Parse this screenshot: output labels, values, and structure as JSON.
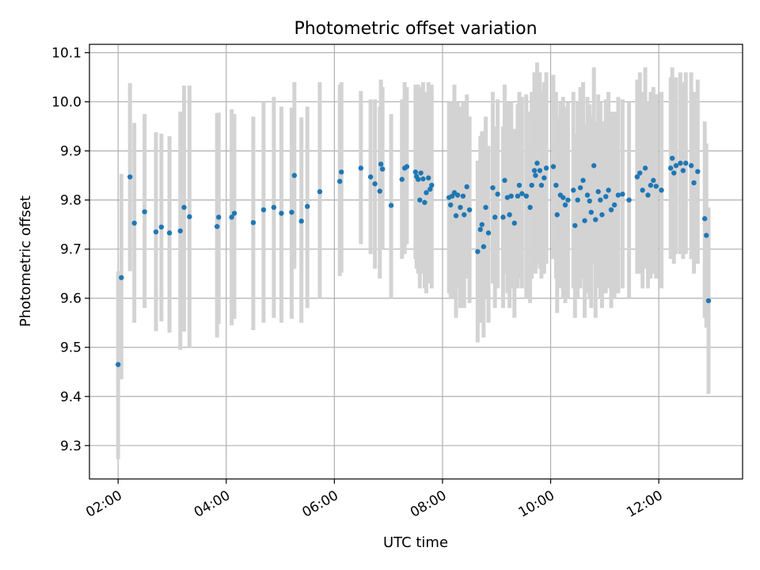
{
  "chart_data": {
    "type": "scatter",
    "title": "Photometric offset variation",
    "xlabel": "UTC time",
    "ylabel": "Photometric offset",
    "xlim": [
      1.47,
      13.55
    ],
    "ylim": [
      9.232,
      10.117
    ],
    "grid": true,
    "colors": {
      "marker": "#1f77b4",
      "errorbar": "#d3d3d3",
      "grid": "#b0b0b0"
    },
    "x_ticks": [
      {
        "value": 2,
        "label": "02:00"
      },
      {
        "value": 4,
        "label": "04:00"
      },
      {
        "value": 6,
        "label": "06:00"
      },
      {
        "value": 8,
        "label": "08:00"
      },
      {
        "value": 10,
        "label": "10:00"
      },
      {
        "value": 12,
        "label": "12:00"
      }
    ],
    "y_ticks": [
      {
        "value": 9.3,
        "label": "9.3"
      },
      {
        "value": 9.4,
        "label": "9.4"
      },
      {
        "value": 9.5,
        "label": "9.5"
      },
      {
        "value": 9.6,
        "label": "9.6"
      },
      {
        "value": 9.7,
        "label": "9.7"
      },
      {
        "value": 9.8,
        "label": "9.8"
      },
      {
        "value": 9.9,
        "label": "9.9"
      },
      {
        "value": 10.0,
        "label": "10.0"
      },
      {
        "value": 10.1,
        "label": "10.1"
      }
    ],
    "series": [
      {
        "name": "offset",
        "points": [
          [
            2.0,
            9.465,
            9.272,
            9.655
          ],
          [
            2.06,
            9.642,
            9.435,
            9.853
          ],
          [
            2.22,
            9.847,
            9.655,
            10.038
          ],
          [
            2.3,
            9.753,
            9.55,
            9.957
          ],
          [
            2.49,
            9.776,
            9.58,
            9.975
          ],
          [
            2.7,
            9.735,
            9.533,
            9.938
          ],
          [
            2.8,
            9.745,
            9.553,
            9.935
          ],
          [
            2.95,
            9.733,
            9.53,
            9.93
          ],
          [
            3.15,
            9.737,
            9.495,
            9.98
          ],
          [
            3.22,
            9.785,
            9.532,
            10.033
          ],
          [
            3.32,
            9.766,
            9.5,
            10.033
          ],
          [
            3.83,
            9.746,
            9.52,
            9.977
          ],
          [
            3.86,
            9.765,
            9.548,
            9.978
          ],
          [
            4.1,
            9.765,
            9.545,
            9.985
          ],
          [
            4.15,
            9.773,
            9.558,
            9.975
          ],
          [
            4.5,
            9.754,
            9.535,
            9.97
          ],
          [
            4.69,
            9.78,
            9.55,
            10.0
          ],
          [
            4.88,
            9.785,
            9.56,
            10.01
          ],
          [
            5.02,
            9.773,
            9.55,
            9.99
          ],
          [
            5.21,
            9.775,
            9.558,
            9.988
          ],
          [
            5.26,
            9.85,
            9.66,
            10.04
          ],
          [
            5.39,
            9.757,
            9.55,
            9.968
          ],
          [
            5.5,
            9.787,
            9.58,
            9.99
          ],
          [
            5.73,
            9.817,
            9.6,
            10.04
          ],
          [
            6.1,
            9.838,
            9.645,
            10.035
          ],
          [
            6.13,
            9.857,
            9.652,
            10.04
          ],
          [
            6.49,
            9.865,
            9.71,
            10.022
          ],
          [
            6.67,
            9.847,
            9.69,
            10.005
          ],
          [
            6.75,
            9.833,
            9.66,
            10.005
          ],
          [
            6.84,
            9.818,
            9.64,
            9.99
          ],
          [
            6.86,
            9.873,
            9.7,
            10.045
          ],
          [
            6.89,
            9.863,
            9.7,
            10.03
          ],
          [
            7.05,
            9.789,
            9.6,
            9.975
          ],
          [
            7.25,
            9.842,
            9.68,
            10.005
          ],
          [
            7.3,
            9.865,
            9.69,
            10.04
          ],
          [
            7.34,
            9.868,
            9.71,
            10.03
          ],
          [
            7.5,
            9.857,
            9.68,
            10.035
          ],
          [
            7.52,
            9.848,
            9.66,
            10.035
          ],
          [
            7.55,
            9.842,
            9.65,
            10.035
          ],
          [
            7.58,
            9.8,
            9.62,
            9.98
          ],
          [
            7.6,
            9.855,
            9.68,
            10.03
          ],
          [
            7.64,
            9.843,
            9.65,
            10.04
          ],
          [
            7.67,
            9.795,
            9.62,
            9.97
          ],
          [
            7.7,
            9.815,
            9.61,
            10.02
          ],
          [
            7.74,
            9.845,
            9.65,
            10.04
          ],
          [
            7.77,
            9.822,
            9.63,
            10.015
          ],
          [
            7.8,
            9.83,
            9.62,
            10.035
          ],
          [
            8.12,
            9.805,
            9.61,
            10.0
          ],
          [
            8.15,
            9.79,
            9.6,
            9.98
          ],
          [
            8.18,
            9.808,
            9.62,
            10.0
          ],
          [
            8.22,
            9.815,
            9.6,
            10.035
          ],
          [
            8.25,
            9.768,
            9.56,
            9.975
          ],
          [
            8.28,
            9.81,
            9.62,
            10.0
          ],
          [
            8.33,
            9.785,
            9.58,
            9.99
          ],
          [
            8.38,
            9.808,
            9.62,
            10.0
          ],
          [
            8.4,
            9.77,
            9.58,
            9.96
          ],
          [
            8.45,
            9.827,
            9.64,
            10.015
          ],
          [
            8.5,
            9.78,
            9.59,
            9.97
          ],
          [
            8.65,
            9.695,
            9.51,
            9.88
          ],
          [
            8.7,
            9.74,
            9.55,
            9.93
          ],
          [
            8.73,
            9.75,
            9.56,
            9.94
          ],
          [
            8.76,
            9.705,
            9.52,
            9.89
          ],
          [
            8.8,
            9.785,
            9.6,
            9.97
          ],
          [
            8.85,
            9.733,
            9.55,
            9.91
          ],
          [
            8.93,
            9.825,
            9.63,
            10.02
          ],
          [
            8.97,
            9.765,
            9.58,
            9.95
          ],
          [
            9.02,
            9.812,
            9.62,
            10.005
          ],
          [
            9.12,
            9.765,
            9.58,
            9.95
          ],
          [
            9.15,
            9.84,
            9.65,
            10.035
          ],
          [
            9.2,
            9.805,
            9.61,
            10.0
          ],
          [
            9.24,
            9.77,
            9.58,
            9.96
          ],
          [
            9.27,
            9.808,
            9.62,
            10.0
          ],
          [
            9.33,
            9.753,
            9.56,
            9.945
          ],
          [
            9.39,
            9.808,
            9.62,
            9.995
          ],
          [
            9.42,
            9.83,
            9.64,
            10.02
          ],
          [
            9.47,
            9.813,
            9.62,
            10.01
          ],
          [
            9.55,
            9.808,
            9.6,
            10.015
          ],
          [
            9.62,
            9.785,
            9.59,
            9.98
          ],
          [
            9.65,
            9.83,
            9.64,
            10.02
          ],
          [
            9.7,
            9.86,
            9.66,
            10.06
          ],
          [
            9.72,
            9.85,
            9.65,
            10.05
          ],
          [
            9.75,
            9.875,
            9.67,
            10.08
          ],
          [
            9.8,
            9.86,
            9.66,
            10.06
          ],
          [
            9.83,
            9.83,
            9.64,
            10.02
          ],
          [
            9.88,
            9.845,
            9.65,
            10.04
          ],
          [
            9.92,
            9.865,
            9.67,
            10.06
          ],
          [
            10.05,
            9.868,
            9.68,
            10.055
          ],
          [
            10.1,
            9.83,
            9.64,
            10.02
          ],
          [
            10.12,
            9.77,
            9.57,
            9.97
          ],
          [
            10.18,
            9.81,
            9.62,
            10.0
          ],
          [
            10.23,
            9.805,
            9.6,
            10.01
          ],
          [
            10.27,
            9.79,
            9.59,
            9.99
          ],
          [
            10.32,
            9.8,
            9.6,
            10.0
          ],
          [
            10.42,
            9.82,
            9.62,
            10.02
          ],
          [
            10.45,
            9.748,
            9.56,
            9.935
          ],
          [
            10.5,
            9.8,
            9.6,
            10.0
          ],
          [
            10.55,
            9.825,
            9.62,
            10.03
          ],
          [
            10.6,
            9.84,
            9.64,
            10.04
          ],
          [
            10.63,
            9.758,
            9.56,
            9.955
          ],
          [
            10.68,
            9.81,
            9.61,
            10.01
          ],
          [
            10.72,
            9.798,
            9.6,
            9.995
          ],
          [
            10.75,
            9.775,
            9.58,
            9.97
          ],
          [
            10.8,
            9.87,
            9.67,
            10.07
          ],
          [
            10.83,
            9.76,
            9.56,
            9.96
          ],
          [
            10.88,
            9.817,
            9.62,
            10.015
          ],
          [
            10.92,
            9.8,
            9.6,
            10.0
          ],
          [
            10.95,
            9.77,
            9.58,
            9.96
          ],
          [
            11.02,
            9.807,
            9.61,
            10.005
          ],
          [
            11.07,
            9.82,
            9.62,
            10.02
          ],
          [
            11.12,
            9.78,
            9.58,
            9.98
          ],
          [
            11.18,
            9.79,
            9.6,
            9.98
          ],
          [
            11.25,
            9.81,
            9.61,
            10.01
          ],
          [
            11.33,
            9.812,
            9.62,
            10.005
          ],
          [
            11.45,
            9.8,
            9.6,
            10.0
          ],
          [
            11.6,
            9.847,
            9.65,
            10.045
          ],
          [
            11.65,
            9.855,
            9.65,
            10.06
          ],
          [
            11.7,
            9.82,
            9.62,
            10.02
          ],
          [
            11.75,
            9.865,
            9.66,
            10.07
          ],
          [
            11.8,
            9.81,
            9.62,
            10.0
          ],
          [
            11.85,
            9.83,
            9.64,
            10.02
          ],
          [
            11.9,
            9.84,
            9.65,
            10.03
          ],
          [
            11.95,
            9.828,
            9.64,
            10.015
          ],
          [
            12.05,
            9.82,
            9.62,
            10.02
          ],
          [
            12.22,
            9.865,
            9.68,
            10.05
          ],
          [
            12.25,
            9.885,
            9.7,
            10.07
          ],
          [
            12.28,
            9.855,
            9.67,
            10.04
          ],
          [
            12.32,
            9.87,
            9.69,
            10.05
          ],
          [
            12.4,
            9.875,
            9.69,
            10.06
          ],
          [
            12.45,
            9.86,
            9.68,
            10.04
          ],
          [
            12.5,
            9.875,
            9.69,
            10.06
          ],
          [
            12.6,
            9.87,
            9.68,
            10.06
          ],
          [
            12.65,
            9.835,
            9.65,
            10.02
          ],
          [
            12.72,
            9.858,
            9.67,
            10.045
          ],
          [
            12.85,
            9.762,
            9.56,
            9.96
          ],
          [
            12.88,
            9.728,
            9.54,
            9.915
          ],
          [
            12.92,
            9.595,
            9.405,
            9.785
          ]
        ]
      }
    ]
  }
}
